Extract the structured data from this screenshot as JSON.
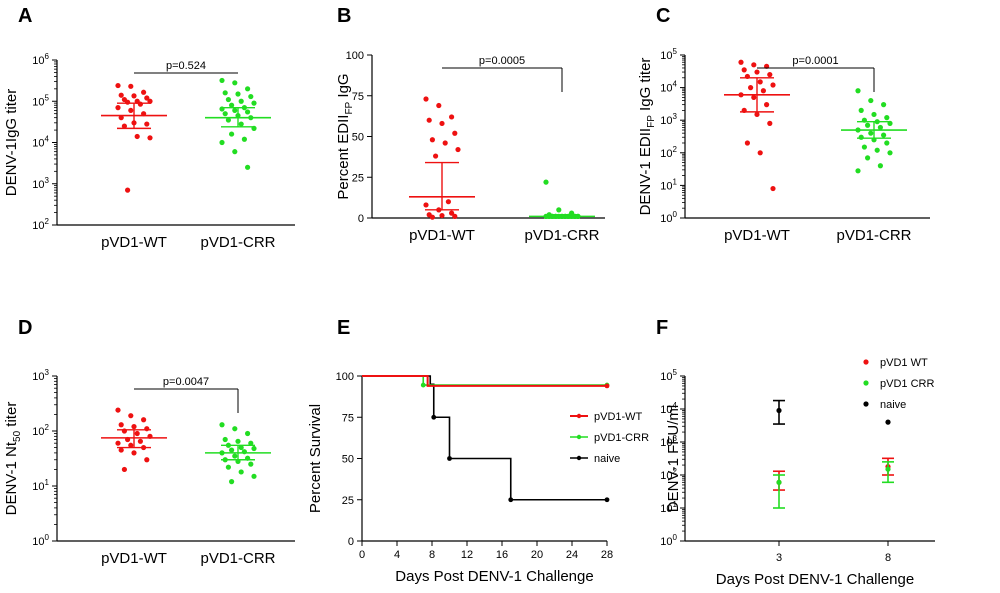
{
  "figure": {
    "colors": {
      "wt": "#ee1111",
      "crr": "#22dd22",
      "naive": "#000000",
      "axis": "#000000"
    }
  },
  "chart_data": [
    {
      "panel": "A",
      "type": "scatter",
      "yscale": "log",
      "ylabel": "DENV-1IgG titer",
      "ylim_exp": [
        2,
        6
      ],
      "ytick_labels": [
        {
          "base": "10",
          "exp": "2"
        },
        {
          "base": "10",
          "exp": "3"
        },
        {
          "base": "10",
          "exp": "4"
        },
        {
          "base": "10",
          "exp": "5"
        },
        {
          "base": "10",
          "exp": "6"
        }
      ],
      "categories": [
        "pVD1-WT",
        "pVD1-CRR"
      ],
      "series": [
        {
          "name": "pVD1-WT",
          "color": "#ee1111",
          "values": [
            240000,
            230000,
            165000,
            140000,
            135000,
            120000,
            110000,
            100000,
            100000,
            95000,
            85000,
            70000,
            60000,
            50000,
            40000,
            30000,
            28000,
            25000,
            14000,
            13000,
            700
          ],
          "mean": 45000,
          "ci": [
            22000,
            90000
          ]
        },
        {
          "name": "pVD1-CRR",
          "color": "#22dd22",
          "values": [
            320000,
            280000,
            200000,
            160000,
            150000,
            130000,
            110000,
            100000,
            90000,
            80000,
            70000,
            65000,
            60000,
            55000,
            50000,
            45000,
            40000,
            35000,
            28000,
            22000,
            16000,
            12000,
            10000,
            6000,
            2500
          ],
          "mean": 40000,
          "ci": [
            24000,
            70000
          ]
        }
      ],
      "annotation": {
        "text": "p=0.524",
        "style": "flat"
      }
    },
    {
      "panel": "B",
      "type": "scatter",
      "yscale": "linear",
      "ylabel_pre": "Percent EDII",
      "ylabel_sub": "FP",
      "ylabel_post": " IgG",
      "ylim": [
        0,
        100
      ],
      "yticks": [
        0,
        25,
        50,
        75,
        100
      ],
      "categories": [
        "pVD1-WT",
        "pVD1-CRR"
      ],
      "series": [
        {
          "name": "pVD1-WT",
          "color": "#ee1111",
          "values": [
            73,
            69,
            62,
            60,
            58,
            52,
            48,
            46,
            42,
            38,
            10,
            8,
            5,
            3,
            2,
            1.5,
            1,
            0.5
          ],
          "mean": 13,
          "ci": [
            5,
            34
          ]
        },
        {
          "name": "pVD1-CRR",
          "color": "#22dd22",
          "values": [
            22,
            5,
            3,
            2,
            1,
            1,
            1,
            1,
            1,
            1,
            1,
            1,
            1,
            1,
            1,
            1,
            1,
            1,
            1,
            1,
            1,
            1
          ],
          "mean": 1,
          "ci": [
            0,
            2
          ]
        }
      ],
      "annotation": {
        "text": "p=0.0005",
        "style": "bracket-right"
      }
    },
    {
      "panel": "C",
      "type": "scatter",
      "yscale": "log",
      "ylabel_pre": "DENV-1 EDII",
      "ylabel_sub": "FP",
      "ylabel_post": " IgG titer",
      "ylim_exp": [
        0,
        5
      ],
      "ytick_labels": [
        {
          "base": "10",
          "exp": "0"
        },
        {
          "base": "10",
          "exp": "1"
        },
        {
          "base": "10",
          "exp": "2"
        },
        {
          "base": "10",
          "exp": "3"
        },
        {
          "base": "10",
          "exp": "4"
        },
        {
          "base": "10",
          "exp": "5"
        }
      ],
      "categories": [
        "pVD1-WT",
        "pVD1-CRR"
      ],
      "series": [
        {
          "name": "pVD1-WT",
          "color": "#ee1111",
          "values": [
            60000,
            50000,
            45000,
            35000,
            30000,
            25000,
            22000,
            15000,
            12000,
            10000,
            8000,
            6000,
            5000,
            3000,
            2000,
            1500,
            800,
            200,
            100,
            8
          ],
          "mean": 6000,
          "ci": [
            1800,
            20000
          ]
        },
        {
          "name": "pVD1-CRR",
          "color": "#22dd22",
          "values": [
            8000,
            4000,
            3000,
            2000,
            1500,
            1200,
            1000,
            900,
            800,
            700,
            600,
            500,
            400,
            350,
            300,
            250,
            200,
            150,
            120,
            100,
            70,
            40,
            28
          ],
          "mean": 500,
          "ci": [
            280,
            900
          ]
        }
      ],
      "annotation": {
        "text": "p=0.0001",
        "style": "bracket-right"
      }
    },
    {
      "panel": "D",
      "type": "scatter",
      "yscale": "log",
      "ylabel_pre": "DENV-1 Nt",
      "ylabel_sub": "50",
      "ylabel_post": " titer",
      "ylim_exp": [
        0,
        3
      ],
      "ytick_labels": [
        {
          "base": "10",
          "exp": "0"
        },
        {
          "base": "10",
          "exp": "1"
        },
        {
          "base": "10",
          "exp": "2"
        },
        {
          "base": "10",
          "exp": "3"
        }
      ],
      "categories": [
        "pVD1-WT",
        "pVD1-CRR"
      ],
      "series": [
        {
          "name": "pVD1-WT",
          "color": "#ee1111",
          "values": [
            240,
            190,
            160,
            130,
            120,
            110,
            100,
            90,
            80,
            70,
            65,
            60,
            55,
            50,
            45,
            40,
            30,
            20
          ],
          "mean": 75,
          "ci": [
            50,
            105
          ]
        },
        {
          "name": "pVD1-CRR",
          "color": "#22dd22",
          "values": [
            130,
            110,
            90,
            70,
            65,
            60,
            55,
            50,
            48,
            45,
            42,
            40,
            35,
            32,
            30,
            28,
            25,
            22,
            18,
            15,
            12
          ],
          "mean": 40,
          "ci": [
            30,
            55
          ]
        }
      ],
      "annotation": {
        "text": "p=0.0047",
        "style": "bracket-right"
      }
    },
    {
      "panel": "E",
      "type": "line",
      "subtype": "survival",
      "ylabel": "Percent Survival",
      "xlabel": "Days Post DENV-1 Challenge",
      "xlim": [
        0,
        28
      ],
      "xticks": [
        0,
        4,
        8,
        12,
        16,
        20,
        24,
        28
      ],
      "ylim": [
        0,
        100
      ],
      "yticks": [
        0,
        25,
        50,
        75,
        100
      ],
      "series": [
        {
          "name": "pVD1-WT",
          "color": "#ee1111",
          "x": [
            0,
            7.5,
            7.5,
            28
          ],
          "y": [
            100,
            100,
            94,
            94
          ],
          "markers_x": [
            28
          ]
        },
        {
          "name": "pVD1-CRR",
          "color": "#22dd22",
          "x": [
            0,
            7,
            7,
            28
          ],
          "y": [
            100,
            100,
            94.5,
            94.5
          ],
          "markers_x": [
            7,
            28
          ]
        },
        {
          "name": "naive",
          "color": "#000000",
          "x": [
            0,
            7.8,
            7.8,
            8.2,
            8.2,
            10,
            10,
            17,
            17,
            28
          ],
          "y": [
            100,
            100,
            95,
            95,
            75,
            75,
            50,
            50,
            25,
            25
          ],
          "markers_x": [
            8.2,
            10,
            17,
            28
          ]
        }
      ]
    },
    {
      "panel": "F",
      "type": "scatter",
      "yscale": "log",
      "ylabel": "DENV-1 FFU/ml",
      "xlabel": "Days Post DENV-1 Challenge",
      "ylim_exp": [
        0,
        5
      ],
      "ytick_labels": [
        {
          "base": "10",
          "exp": "0"
        },
        {
          "base": "10",
          "exp": "1"
        },
        {
          "base": "10",
          "exp": "2"
        },
        {
          "base": "10",
          "exp": "3"
        },
        {
          "base": "10",
          "exp": "4"
        },
        {
          "base": "10",
          "exp": "5"
        }
      ],
      "categories": [
        "3",
        "8"
      ],
      "series": [
        {
          "name": "pVD1 WT",
          "color": "#ee1111",
          "points": [
            {
              "cat": 0,
              "y": 60,
              "lo": 35,
              "hi": 130
            },
            {
              "cat": 1,
              "y": 180,
              "lo": 100,
              "hi": 320
            }
          ]
        },
        {
          "name": "pVD1 CRR",
          "color": "#22dd22",
          "points": [
            {
              "cat": 0,
              "y": 60,
              "lo": 10,
              "hi": 100
            },
            {
              "cat": 1,
              "y": 150,
              "lo": 60,
              "hi": 250
            }
          ]
        },
        {
          "name": "naive",
          "color": "#000000",
          "points": [
            {
              "cat": 0,
              "y": 9000,
              "lo": 3500,
              "hi": 18000
            },
            {
              "cat": 1,
              "y": 4000,
              "lo": 4000,
              "hi": 4000
            }
          ]
        }
      ]
    }
  ]
}
